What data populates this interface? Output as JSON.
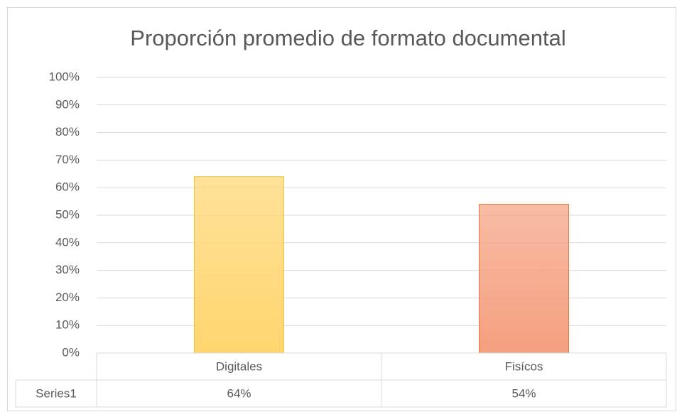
{
  "chart_data": {
    "type": "bar",
    "title": "Proporción promedio de formato documental",
    "categories": [
      "Digitales",
      "Fisícos"
    ],
    "series": [
      {
        "name": "Series1",
        "colors": [
          "#FFD56E",
          "#F59F7E"
        ],
        "edge_colors": [
          "#F2C23B",
          "#E37A4E"
        ],
        "values": [
          64,
          54
        ],
        "value_labels": [
          "64%",
          "54%"
        ]
      }
    ],
    "ylim": [
      0,
      100
    ],
    "yticks": [
      {
        "value": 0,
        "label": "0%"
      },
      {
        "value": 10,
        "label": "10%"
      },
      {
        "value": 20,
        "label": "20%"
      },
      {
        "value": 30,
        "label": "30%"
      },
      {
        "value": 40,
        "label": "40%"
      },
      {
        "value": 50,
        "label": "50%"
      },
      {
        "value": 60,
        "label": "60%"
      },
      {
        "value": 70,
        "label": "70%"
      },
      {
        "value": 80,
        "label": "80%"
      },
      {
        "value": 90,
        "label": "90%"
      },
      {
        "value": 100,
        "label": "100%"
      }
    ],
    "grid": true,
    "data_table": true
  }
}
